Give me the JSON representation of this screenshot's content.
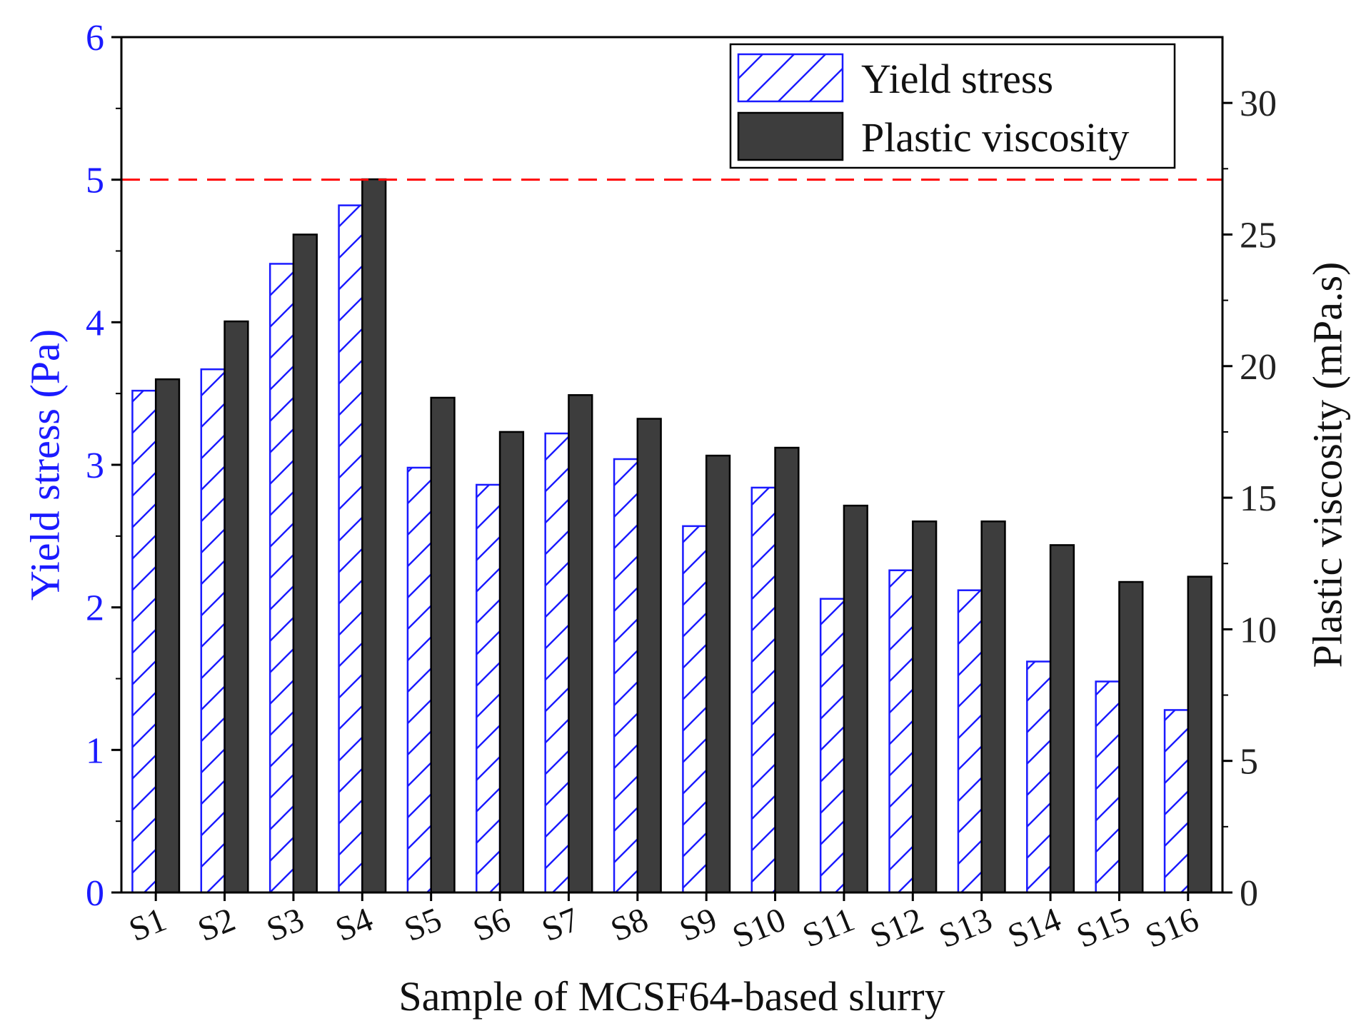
{
  "chart_data": {
    "type": "bar",
    "xlabel": "Sample of MCSF64-based slurry",
    "categories": [
      "S1",
      "S2",
      "S3",
      "S4",
      "S5",
      "S6",
      "S7",
      "S8",
      "S9",
      "S10",
      "S11",
      "S12",
      "S13",
      "S14",
      "S15",
      "S16"
    ],
    "series": [
      {
        "name": "Yield stress",
        "axis": "left",
        "style": "hatched",
        "color": "#1a1aff",
        "values": [
          3.52,
          3.67,
          4.41,
          4.82,
          2.98,
          2.86,
          3.22,
          3.04,
          2.57,
          2.84,
          2.06,
          2.26,
          2.12,
          1.62,
          1.48,
          1.28
        ]
      },
      {
        "name": "Plastic viscosity",
        "axis": "right",
        "style": "solid",
        "color": "#3d3d3d",
        "values": [
          19.5,
          21.7,
          25.0,
          27.1,
          18.8,
          17.5,
          18.9,
          18.0,
          16.6,
          16.9,
          14.7,
          14.1,
          14.1,
          13.2,
          11.8,
          12.0
        ]
      }
    ],
    "y_left": {
      "label": "Yield stress (Pa)",
      "ylim": [
        0,
        6
      ],
      "ticks": [
        0,
        1,
        2,
        3,
        4,
        5,
        6
      ],
      "color": "#1a1aff"
    },
    "y_right": {
      "label": "Plastic viscosity (mPa.s)",
      "ylim": [
        0,
        32.5
      ],
      "ticks": [
        0,
        5,
        10,
        15,
        20,
        25,
        30
      ]
    },
    "reference_line": {
      "axis": "left",
      "value": 5,
      "style": "dashed",
      "color": "#ff0000"
    },
    "legend": {
      "placement": "top-right",
      "entries": [
        "Yield stress",
        "Plastic viscosity"
      ]
    },
    "grid": false
  }
}
